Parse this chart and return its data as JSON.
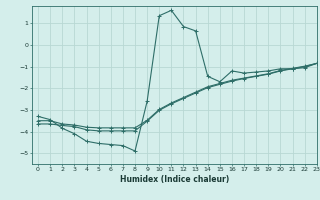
{
  "xlabel": "Humidex (Indice chaleur)",
  "bg_color": "#d4eeeb",
  "grid_color": "#b8d8d4",
  "line_color": "#2e6e68",
  "xlim": [
    -0.5,
    23
  ],
  "ylim": [
    -5.5,
    1.8
  ],
  "xticks": [
    0,
    1,
    2,
    3,
    4,
    5,
    6,
    7,
    8,
    9,
    10,
    11,
    12,
    13,
    14,
    15,
    16,
    17,
    18,
    19,
    20,
    21,
    22,
    23
  ],
  "yticks": [
    -5,
    -4,
    -3,
    -2,
    -1,
    0,
    1
  ],
  "line1_x": [
    0,
    1,
    2,
    3,
    4,
    5,
    6,
    7,
    8,
    9,
    10,
    11,
    12,
    13,
    14,
    15,
    16,
    17,
    18,
    19,
    20,
    21,
    22,
    23
  ],
  "line1_y": [
    -3.3,
    -3.45,
    -3.85,
    -4.1,
    -4.45,
    -4.55,
    -4.6,
    -4.65,
    -4.9,
    -2.6,
    1.35,
    1.6,
    0.85,
    0.65,
    -1.45,
    -1.7,
    -1.2,
    -1.3,
    -1.25,
    -1.2,
    -1.1,
    -1.1,
    -1.05,
    -0.85
  ],
  "line2_x": [
    0,
    1,
    2,
    3,
    4,
    5,
    6,
    7,
    8,
    9,
    10,
    11,
    12,
    13,
    14,
    15,
    16,
    17,
    18,
    19,
    20,
    21,
    22,
    23
  ],
  "line2_y": [
    -3.5,
    -3.5,
    -3.65,
    -3.7,
    -3.8,
    -3.83,
    -3.83,
    -3.83,
    -3.83,
    -3.48,
    -2.98,
    -2.68,
    -2.43,
    -2.18,
    -1.93,
    -1.78,
    -1.63,
    -1.53,
    -1.43,
    -1.33,
    -1.18,
    -1.08,
    -0.98,
    -0.85
  ],
  "line3_x": [
    0,
    1,
    2,
    3,
    4,
    5,
    6,
    7,
    8,
    9,
    10,
    11,
    12,
    13,
    14,
    15,
    16,
    17,
    18,
    19,
    20,
    21,
    22,
    23
  ],
  "line3_y": [
    -3.65,
    -3.65,
    -3.72,
    -3.77,
    -3.92,
    -3.97,
    -3.97,
    -3.97,
    -3.97,
    -3.52,
    -3.02,
    -2.72,
    -2.47,
    -2.22,
    -1.97,
    -1.82,
    -1.67,
    -1.55,
    -1.45,
    -1.35,
    -1.2,
    -1.1,
    -1.0,
    -0.85
  ]
}
